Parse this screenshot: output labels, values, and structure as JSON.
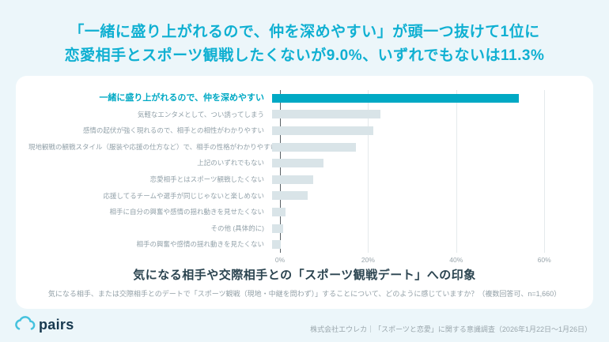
{
  "header": {
    "line1": "「一緒に盛り上がれるので、仲を深めやすい」が頭一つ抜けて1位に",
    "line2": "恋愛相手とスポーツ観戦したくないが9.0%、いずれでもないは11.3%"
  },
  "chart_data": {
    "type": "bar",
    "orientation": "horizontal",
    "categories": [
      "一緒に盛り上がれるので、仲を深めやすい",
      "気軽なエンタメとして、つい誘ってしまう",
      "感情の起伏が強く現れるので、相手との相性がわかりやすい",
      "現地観戦の観戦スタイル（服装や応援の仕方など）で、相手の性格がわかりやすい",
      "上記のいずれでもない",
      "恋愛相手とはスポーツ観戦したくない",
      "応援してるチームや選手が同じじゃないと楽しめない",
      "相手に自分の興奮や感情の揺れ動きを見せたくない",
      "その他 (具体的に)",
      "相手の興奮や感情の揺れ動きを見たくない"
    ],
    "values": [
      54.6,
      24.0,
      22.3,
      18.5,
      11.3,
      9.0,
      7.8,
      2.9,
      2.4,
      2.0
    ],
    "highlight_index": 0,
    "axis": {
      "ticks": [
        0,
        20,
        40,
        60
      ],
      "tick_labels": [
        "0%",
        "20%",
        "40%",
        "60%"
      ],
      "max": 65
    },
    "title": "気になる相手や交際相手との「スポーツ観戦デート」への印象",
    "caption": "気になる相手、または交際相手とのデートで「スポーツ観戦（現地・中継を問わず）」することについて、どのように感じていますか？（複数回答可、n=1,660）",
    "colors": {
      "highlight": "#00a9c4",
      "default": "#d9e4e8"
    }
  },
  "footer": {
    "logo_text": "pairs",
    "source": "株式会社エウレカ｜「スポーツと恋愛」に関する意識調査（2026年1月22日〜1月26日）"
  }
}
